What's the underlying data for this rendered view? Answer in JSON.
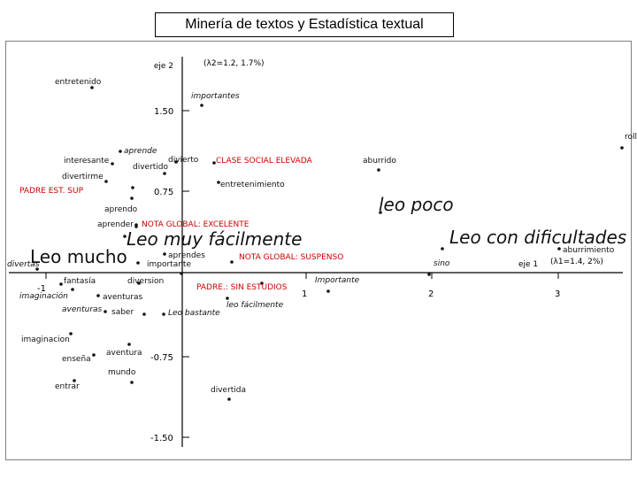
{
  "title": "Minería de textos y Estadística textual",
  "colors": {
    "dark": "#111111",
    "red": "#cc0000",
    "axis": "#000000",
    "frame": "#7f7f7f"
  },
  "chart_data": {
    "type": "scatter",
    "axis_x": {
      "label": "eje 1",
      "inertia": "(λ1=1.4, 2%)",
      "ticks": [
        "-1",
        "1",
        "2",
        "3"
      ]
    },
    "axis_y": {
      "label": "eje 2",
      "inertia": "(λ2=1.2, 1.7%)",
      "ticks": [
        "1.50",
        "0.75",
        "-0.75",
        "-1.50"
      ]
    },
    "points": [
      {
        "label": "entretenido",
        "color": "dark",
        "style": "normal",
        "size": "small"
      },
      {
        "label": "importantes",
        "color": "dark",
        "style": "italic",
        "size": "small"
      },
      {
        "label": "roll",
        "color": "dark",
        "style": "normal",
        "size": "small"
      },
      {
        "label": "interesante",
        "color": "dark",
        "style": "normal",
        "size": "small"
      },
      {
        "label": "aprende",
        "color": "dark",
        "style": "italic",
        "size": "small"
      },
      {
        "label": "divierto",
        "color": "dark",
        "style": "normal",
        "size": "small"
      },
      {
        "label": "CLASE SOCIAL ELEVADA",
        "color": "red",
        "style": "normal",
        "size": "small"
      },
      {
        "label": "aburrido",
        "color": "dark",
        "style": "normal",
        "size": "small"
      },
      {
        "label": "divertido",
        "color": "dark",
        "style": "normal",
        "size": "small"
      },
      {
        "label": "divertirme",
        "color": "dark",
        "style": "normal",
        "size": "small"
      },
      {
        "label": "entretenimiento",
        "color": "dark",
        "style": "normal",
        "size": "small"
      },
      {
        "label": "PADRE EST. SUP",
        "color": "red",
        "style": "normal",
        "size": "small"
      },
      {
        "label": "leo poco",
        "color": "dark",
        "style": "italic",
        "size": "large"
      },
      {
        "label": "aprendo",
        "color": "dark",
        "style": "normal",
        "size": "small"
      },
      {
        "label": "aprender",
        "color": "dark",
        "style": "normal",
        "size": "small"
      },
      {
        "label": "NOTA GLOBAL: EXCELENTE",
        "color": "red",
        "style": "normal",
        "size": "small"
      },
      {
        "label": "Leo muy fácilmente",
        "color": "dark",
        "style": "italic",
        "size": "large"
      },
      {
        "label": "Leo con dificultades",
        "color": "dark",
        "style": "italic",
        "size": "large"
      },
      {
        "label": "aburrimiento",
        "color": "dark",
        "style": "normal",
        "size": "small"
      },
      {
        "label": "divertas",
        "color": "dark",
        "style": "italic",
        "size": "small"
      },
      {
        "label": "Leo mucho",
        "color": "dark",
        "style": "normal",
        "size": "large"
      },
      {
        "label": "aprendes",
        "color": "dark",
        "style": "normal",
        "size": "small"
      },
      {
        "label": "importante",
        "color": "dark",
        "style": "normal",
        "size": "small"
      },
      {
        "label": "NOTA GLOBAL: SUSPENSO",
        "color": "red",
        "style": "normal",
        "size": "small"
      },
      {
        "label": "sino",
        "color": "dark",
        "style": "italic",
        "size": "small"
      },
      {
        "label": "fantasía",
        "color": "dark",
        "style": "normal",
        "size": "small"
      },
      {
        "label": "diversion",
        "color": "dark",
        "style": "normal",
        "size": "small"
      },
      {
        "label": "PADRE.: SIN ESTUDIOS",
        "color": "red",
        "style": "normal",
        "size": "small"
      },
      {
        "label": "Importante",
        "color": "dark",
        "style": "italic",
        "size": "small"
      },
      {
        "label": "imaginación",
        "color": "dark",
        "style": "italic",
        "size": "small"
      },
      {
        "label": "aventuras",
        "color": "dark",
        "style": "normal",
        "size": "small"
      },
      {
        "label": "leo fácilmente",
        "color": "dark",
        "style": "italic",
        "size": "small"
      },
      {
        "label": "aventuras",
        "color": "dark",
        "style": "italic",
        "size": "small"
      },
      {
        "label": "saber",
        "color": "dark",
        "style": "normal",
        "size": "small"
      },
      {
        "label": "Leo bastante",
        "color": "dark",
        "style": "italic",
        "size": "small"
      },
      {
        "label": "imaginacion",
        "color": "dark",
        "style": "normal",
        "size": "small"
      },
      {
        "label": "enseña",
        "color": "dark",
        "style": "normal",
        "size": "small"
      },
      {
        "label": "aventura",
        "color": "dark",
        "style": "normal",
        "size": "small"
      },
      {
        "label": "mundo",
        "color": "dark",
        "style": "normal",
        "size": "small"
      },
      {
        "label": "entrar",
        "color": "dark",
        "style": "normal",
        "size": "small"
      },
      {
        "label": "divertida",
        "color": "dark",
        "style": "normal",
        "size": "small"
      }
    ]
  }
}
